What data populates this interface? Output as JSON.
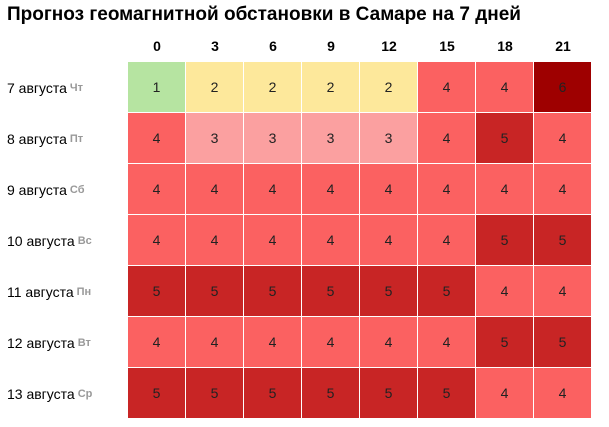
{
  "title": "Прогноз геомагнитной обстановки в Самаре на 7 дней",
  "colors": {
    "1": "#b6e4a1",
    "2": "#fde89b",
    "3": "#fba0a0",
    "4": "#fb6161",
    "5": "#c82525",
    "6": "#9e0000"
  },
  "chart_data": {
    "type": "heatmap",
    "title": "Прогноз геомагнитной обстановки в Самаре на 7 дней",
    "x": [
      "0",
      "3",
      "6",
      "9",
      "12",
      "15",
      "18",
      "21"
    ],
    "y": [
      {
        "date": "7 августа",
        "weekday": "Чт"
      },
      {
        "date": "8 августа",
        "weekday": "Пт"
      },
      {
        "date": "9 августа",
        "weekday": "Сб"
      },
      {
        "date": "10 августа",
        "weekday": "Вс"
      },
      {
        "date": "11 августа",
        "weekday": "Пн"
      },
      {
        "date": "12 августа",
        "weekday": "Вт"
      },
      {
        "date": "13 августа",
        "weekday": "Ср"
      }
    ],
    "values": [
      [
        1,
        2,
        2,
        2,
        2,
        4,
        4,
        6
      ],
      [
        4,
        3,
        3,
        3,
        3,
        4,
        5,
        4
      ],
      [
        4,
        4,
        4,
        4,
        4,
        4,
        4,
        4
      ],
      [
        4,
        4,
        4,
        4,
        4,
        4,
        5,
        5
      ],
      [
        5,
        5,
        5,
        5,
        5,
        5,
        4,
        4
      ],
      [
        4,
        4,
        4,
        4,
        4,
        4,
        5,
        5
      ],
      [
        5,
        5,
        5,
        5,
        5,
        5,
        4,
        4
      ]
    ]
  }
}
